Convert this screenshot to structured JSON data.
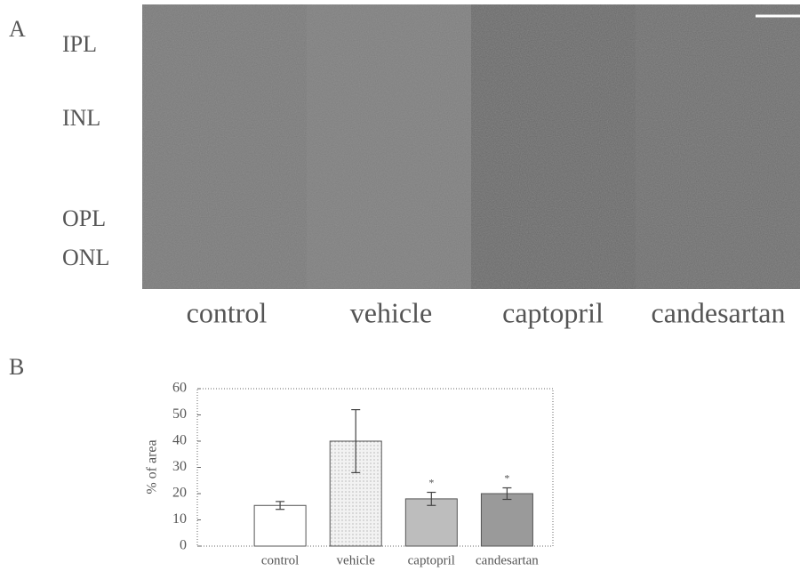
{
  "panel_a": {
    "label": "A",
    "layers": [
      "IPL",
      "INL",
      "OPL",
      "ONL"
    ],
    "groups": [
      "control",
      "vehicle",
      "captopril",
      "candesartan"
    ]
  },
  "panel_b_label": "B",
  "chart_data": {
    "type": "bar",
    "y_label": "% of area",
    "categories": [
      "control",
      "vehicle",
      "captopril",
      "candesartan"
    ],
    "values": [
      15.5,
      40,
      18,
      20
    ],
    "errors": [
      1.5,
      12,
      2.5,
      2.2
    ],
    "annotations": [
      null,
      null,
      "*",
      "*"
    ],
    "colors": [
      "#ffffff",
      "#ececec",
      "#bdbdbd",
      "#9a9a9a"
    ],
    "ylim": [
      0,
      60
    ],
    "yticks": [
      0,
      10,
      20,
      30,
      40,
      50,
      60
    ],
    "grid": false
  }
}
